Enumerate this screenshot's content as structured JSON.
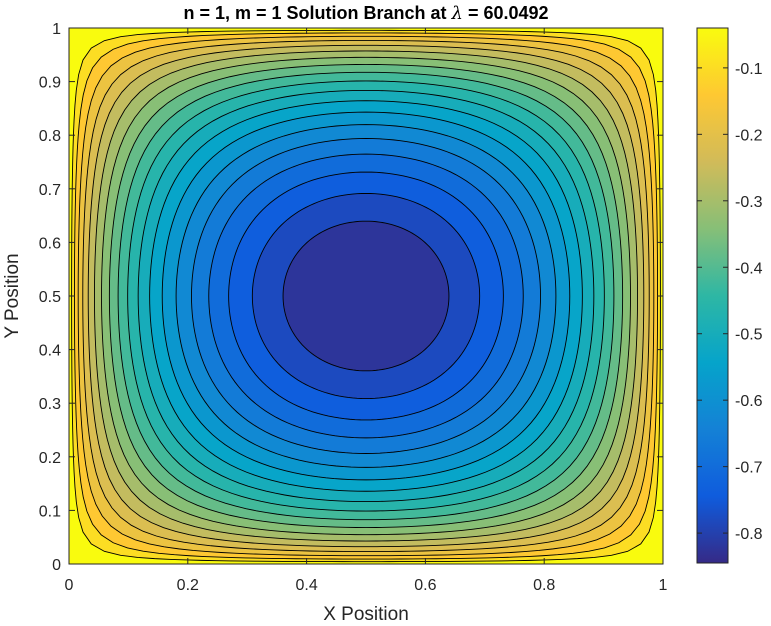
{
  "chart_data": {
    "type": "heatmap",
    "subtype": "filled-contour",
    "title": {
      "prefix": "n = 1, m = 1 Solution Branch at ",
      "symbol": "λ",
      "suffix": " = 60.0492"
    },
    "xlabel": "X Position",
    "ylabel": "Y Position",
    "xlim": [
      0,
      1
    ],
    "ylim": [
      0,
      1
    ],
    "x_ticks": [
      0,
      0.2,
      0.4,
      0.6,
      0.8,
      1
    ],
    "y_ticks": [
      0,
      0.1,
      0.2,
      0.3,
      0.4,
      0.5,
      0.6,
      0.7,
      0.8,
      0.9,
      1
    ],
    "x_tick_labels": [
      "0",
      "0.2",
      "0.4",
      "0.6",
      "0.8",
      "1"
    ],
    "y_tick_labels": [
      "0",
      "0.1",
      "0.2",
      "0.3",
      "0.4",
      "0.5",
      "0.6",
      "0.7",
      "0.8",
      "0.9",
      "1"
    ],
    "value_range": [
      -0.845,
      -0.04
    ],
    "minimum_location": {
      "x": 0.5,
      "y": 0.5
    },
    "minimum_value": -0.845,
    "field_shape": "square-well: u(x,y) = max_value * (1 - (1 - (sin(pi*x)*sin(pi*y))^0.55))",
    "contour_levels": [
      -0.08,
      -0.12,
      -0.16,
      -0.2,
      -0.24,
      -0.28,
      -0.32,
      -0.36,
      -0.4,
      -0.44,
      -0.48,
      -0.52,
      -0.56,
      -0.6,
      -0.64,
      -0.68,
      -0.72,
      -0.76,
      -0.8
    ],
    "colormap": "parula",
    "colormap_stops": [
      "#352a87",
      "#0f5cdd",
      "#1481d6",
      "#06a4ca",
      "#2eb7a4",
      "#87bf77",
      "#d1bb59",
      "#fec832",
      "#f9fb0e"
    ],
    "contour_line_color": "#000000",
    "colorbar": {
      "position": "right",
      "ticks": [
        -0.1,
        -0.2,
        -0.3,
        -0.4,
        -0.5,
        -0.6,
        -0.7,
        -0.8
      ],
      "tick_labels": [
        "-0.1",
        "-0.2",
        "-0.3",
        "-0.4",
        "-0.5",
        "-0.6",
        "-0.7",
        "-0.8"
      ]
    },
    "grid": false
  }
}
